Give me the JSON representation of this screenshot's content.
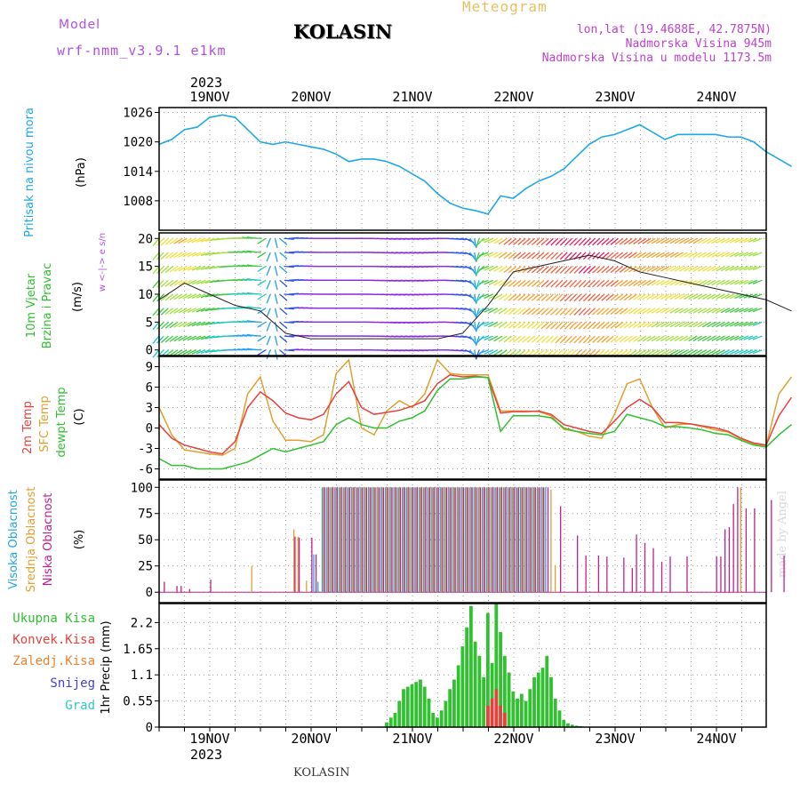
{
  "header": {
    "model_label": "Model",
    "model_name": "wrf-nmm_v3.9.1 e1km",
    "station": "KOLASIN",
    "product": "Meteogram",
    "coords": "lon,lat (19.4688E, 42.7875N)",
    "elevation": "Nadmorska Visina 945m",
    "model_elevation": "Nadmorska Visina u modelu 1173.5m",
    "footer_station": "KOLASIN",
    "credit": "made by Angel"
  },
  "colors": {
    "model": "#b050e0",
    "product": "#e6c060",
    "coords": "#c040d0",
    "pressure": "#1ea8e6",
    "temp2m": "#e8403c",
    "tempsfc": "#e0a030",
    "dewpt": "#30c030",
    "cloud_high": "#1ea8e6",
    "cloud_mid": "#e0a030",
    "cloud_low": "#c0208c",
    "precip_total": "#30c030",
    "precip_conv": "#e8403c",
    "precip_frz": "#f08030",
    "snow": "#4040e0",
    "grad": "#30c8c8",
    "wind_label": "#30c030"
  },
  "time_axis": {
    "year": "2023",
    "days": [
      "19NOV",
      "20NOV",
      "21NOV",
      "22NOV",
      "23NOV",
      "24NOV"
    ]
  },
  "chart_data": [
    {
      "type": "line",
      "name": "pressure",
      "ylabel": "Pritisak na nivou mora",
      "unit": "(hPa)",
      "ylim": [
        1002,
        1027
      ],
      "yticks": [
        "1008",
        "1014",
        "1020",
        "1026"
      ],
      "x_hours": [
        0,
        3,
        6,
        9,
        12,
        15,
        18,
        21,
        24,
        27,
        30,
        33,
        36,
        39,
        42,
        45,
        48,
        51,
        54,
        57,
        60,
        63,
        66,
        69,
        72,
        75,
        78,
        81,
        84,
        87,
        90,
        93,
        96,
        99,
        102,
        105,
        108,
        111,
        114,
        117,
        120,
        123,
        126,
        129,
        132,
        135,
        138,
        141,
        144,
        147,
        150
      ],
      "values": [
        1019.5,
        1020.5,
        1022.5,
        1023,
        1025,
        1025.5,
        1025,
        1022.5,
        1020,
        1019.5,
        1020,
        1019.5,
        1019,
        1018.5,
        1017.5,
        1016,
        1016.5,
        1016.5,
        1016,
        1015,
        1013.5,
        1012,
        1009.5,
        1007.5,
        1006.5,
        1006,
        1005.3,
        1009,
        1008.5,
        1010.5,
        1012,
        1013,
        1014.5,
        1017,
        1019.5,
        1021,
        1021.5,
        1022.5,
        1023.5,
        1022,
        1020.5,
        1021.5,
        1021.5,
        1021.5,
        1021.5,
        1021,
        1021,
        1020,
        1018,
        1016.5,
        1015
      ]
    },
    {
      "type": "wind",
      "name": "wind10m",
      "ylabel": "10m Vjetar Brzina i Pravac",
      "unit": "(m/s)",
      "compass": "w <-|-> e  s/n",
      "ylim": [
        -1,
        21
      ],
      "yticks": [
        "0",
        "5",
        "10",
        "15",
        "20"
      ],
      "x_hours": [
        0,
        6,
        12,
        18,
        24,
        30,
        36,
        42,
        48,
        54,
        60,
        66,
        72,
        78,
        84,
        90,
        96,
        102,
        108,
        114,
        120,
        126,
        132,
        138,
        144,
        150
      ],
      "speed": [
        9,
        12,
        10,
        8,
        7,
        3,
        2,
        2,
        2,
        2,
        2,
        2,
        3,
        8,
        14,
        15,
        16,
        17,
        16,
        14,
        13,
        12,
        11,
        10,
        9,
        7
      ],
      "direction_deg": [
        220,
        240,
        250,
        270,
        280,
        85,
        90,
        90,
        90,
        95,
        95,
        90,
        100,
        250,
        230,
        230,
        225,
        225,
        230,
        235,
        240,
        240,
        240,
        245,
        250,
        250
      ]
    },
    {
      "type": "line",
      "name": "temperature",
      "ylabel": "2m Temp SFC Temp dewpt Temp",
      "unit": "(C)",
      "ylim": [
        -7.5,
        10.5
      ],
      "yticks": [
        "-6",
        "-3",
        "0",
        "3",
        "6",
        "9"
      ],
      "x_hours": [
        0,
        3,
        6,
        9,
        12,
        15,
        18,
        21,
        24,
        27,
        30,
        33,
        36,
        39,
        42,
        45,
        48,
        51,
        54,
        57,
        60,
        63,
        66,
        69,
        72,
        75,
        78,
        81,
        84,
        87,
        90,
        93,
        96,
        99,
        102,
        105,
        108,
        111,
        114,
        117,
        120,
        123,
        126,
        129,
        132,
        135,
        138,
        141,
        144,
        147,
        150
      ],
      "series": [
        {
          "name": "2m Temp",
          "values": [
            0.5,
            -1.5,
            -2.5,
            -3,
            -3.5,
            -3.8,
            -2,
            3,
            5.3,
            4,
            2.2,
            1.5,
            1.2,
            2,
            5,
            6.8,
            3,
            2,
            2.3,
            2.6,
            3.2,
            4,
            6.5,
            7.8,
            7.5,
            7.6,
            7.4,
            2.2,
            2.4,
            2.4,
            2.5,
            2,
            0.5,
            0,
            -0.5,
            -0.8,
            1,
            3,
            4.2,
            3,
            0.8,
            0.8,
            0.6,
            0.3,
            0,
            -0.5,
            -1.5,
            -2.2,
            -2.5,
            1.8,
            4.5
          ]
        },
        {
          "name": "SFC Temp",
          "values": [
            3,
            -1,
            -3.2,
            -3.5,
            -3.8,
            -4,
            -3,
            5,
            7.5,
            1,
            -1.8,
            -1.8,
            -2,
            -1,
            8,
            10,
            0,
            -1,
            2.5,
            4,
            3,
            5,
            10,
            8,
            7.8,
            7.8,
            7.8,
            2.5,
            2.5,
            2.5,
            2.4,
            1.8,
            -0.2,
            -0.5,
            -1.2,
            -1.5,
            2,
            6.5,
            7.2,
            3,
            0,
            0.5,
            0.6,
            0.2,
            -0.3,
            -0.6,
            -1.6,
            -2.3,
            -2.6,
            5,
            7.5
          ]
        },
        {
          "name": "dewpt Temp",
          "values": [
            -4.5,
            -5.5,
            -5.5,
            -6,
            -6,
            -6,
            -5.5,
            -5,
            -4,
            -3,
            -3.5,
            -3,
            -2.5,
            -2,
            0.5,
            1.5,
            0.5,
            0,
            0,
            1,
            1.5,
            2.5,
            5.5,
            7.2,
            7.2,
            7.5,
            7.4,
            -0.5,
            1.8,
            1.8,
            1.8,
            1.5,
            0,
            -0.5,
            -0.8,
            -1,
            -0.5,
            2,
            1.5,
            1,
            0.2,
            0.2,
            0,
            -0.3,
            -0.8,
            -1,
            -1.8,
            -2.5,
            -2.8,
            -1,
            0.5
          ]
        }
      ]
    },
    {
      "type": "bar",
      "name": "clouds",
      "ylabel": "Visoka Oblacnost Srednja Oblacnost Niska Oblacnost",
      "unit": "(%)",
      "ylim": [
        0,
        100
      ],
      "yticks": [
        "0",
        "25",
        "50",
        "75",
        "100"
      ],
      "series": [
        {
          "name": "Visoka Oblacnost",
          "x_hours": [
            37,
            38,
            39,
            40,
            41,
            42,
            43,
            44,
            45,
            46,
            47,
            48,
            49,
            50,
            51,
            52,
            53,
            54,
            55,
            56,
            57,
            58,
            59,
            60,
            61,
            62,
            63,
            64,
            65,
            66,
            67,
            68,
            69,
            70,
            71,
            72,
            73,
            74,
            75,
            76,
            77,
            78,
            79,
            80,
            81,
            82,
            83,
            84,
            85,
            86,
            87,
            88,
            89,
            90,
            91,
            92
          ],
          "values": [
            36,
            10,
            100,
            100,
            100,
            100,
            100,
            100,
            100,
            100,
            100,
            100,
            100,
            100,
            100,
            100,
            100,
            100,
            100,
            100,
            100,
            100,
            100,
            100,
            100,
            100,
            100,
            100,
            100,
            100,
            100,
            100,
            100,
            100,
            100,
            100,
            100,
            100,
            100,
            100,
            100,
            100,
            100,
            100,
            100,
            100,
            100,
            100,
            100,
            100,
            100,
            100,
            100,
            100,
            100,
            100
          ]
        },
        {
          "name": "Srednja Oblacnost",
          "x_hours": [
            22,
            32,
            33,
            35,
            39,
            40,
            41,
            42,
            43,
            44,
            45,
            46,
            47,
            48,
            49,
            50,
            51,
            52,
            53,
            54,
            55,
            56,
            57,
            58,
            59,
            60,
            61,
            62,
            63,
            64,
            65,
            66,
            67,
            68,
            69,
            70,
            71,
            72,
            73,
            74,
            75,
            76,
            77,
            78,
            79,
            80,
            81,
            82,
            83,
            84,
            85,
            86,
            87,
            88,
            89,
            90,
            91,
            93,
            94,
            138
          ],
          "values": [
            25,
            60,
            53,
            11,
            100,
            100,
            100,
            100,
            100,
            100,
            100,
            100,
            100,
            100,
            100,
            100,
            100,
            100,
            100,
            100,
            100,
            100,
            100,
            100,
            100,
            100,
            100,
            100,
            100,
            100,
            100,
            100,
            100,
            100,
            100,
            100,
            100,
            100,
            100,
            100,
            100,
            100,
            100,
            100,
            100,
            100,
            100,
            100,
            100,
            100,
            100,
            100,
            100,
            100,
            100,
            100,
            100,
            98,
            26,
            100
          ]
        },
        {
          "name": "Niska Oblacnost",
          "x_hours": [
            1,
            4,
            5,
            7,
            12,
            32,
            33,
            35,
            36,
            37,
            39,
            40,
            41,
            42,
            43,
            44,
            45,
            46,
            47,
            48,
            49,
            50,
            51,
            52,
            53,
            54,
            55,
            56,
            57,
            58,
            59,
            60,
            61,
            62,
            63,
            64,
            65,
            66,
            67,
            68,
            69,
            70,
            71,
            72,
            73,
            74,
            75,
            76,
            77,
            78,
            79,
            80,
            81,
            82,
            83,
            84,
            85,
            86,
            87,
            88,
            89,
            90,
            91,
            92,
            95,
            99,
            101,
            104,
            106,
            110,
            112,
            113,
            115,
            117,
            119,
            121,
            125,
            132,
            133,
            134,
            135,
            136,
            137,
            139,
            141,
            145,
            148
          ],
          "values": [
            10,
            6,
            6,
            3,
            12,
            53,
            52,
            0,
            52,
            36,
            100,
            100,
            100,
            100,
            100,
            100,
            100,
            100,
            100,
            100,
            100,
            100,
            100,
            100,
            100,
            100,
            100,
            100,
            100,
            100,
            100,
            100,
            100,
            100,
            100,
            100,
            100,
            100,
            100,
            100,
            100,
            100,
            100,
            100,
            100,
            100,
            100,
            100,
            100,
            100,
            100,
            100,
            100,
            100,
            100,
            100,
            100,
            100,
            100,
            100,
            100,
            100,
            100,
            100,
            82,
            54,
            35,
            35,
            34,
            33,
            23,
            55,
            47,
            42,
            29,
            34,
            34,
            34,
            34,
            60,
            62,
            84,
            100,
            80,
            80,
            88,
            35
          ]
        }
      ]
    },
    {
      "type": "bar",
      "name": "precipitation",
      "ylabel": "1hr Precip",
      "unit": "(mm)",
      "ylim": [
        0,
        2.6
      ],
      "yticks": [
        "0",
        "0.55",
        "1.1",
        "1.65",
        "2.2"
      ],
      "series": [
        {
          "name": "Ukupna Kisa",
          "x_hours": [
            54,
            55,
            56,
            57,
            58,
            59,
            60,
            61,
            62,
            63,
            64,
            65,
            66,
            67,
            68,
            69,
            70,
            71,
            72,
            73,
            74,
            75,
            76,
            77,
            78,
            79,
            80,
            81,
            82,
            83,
            84,
            85,
            86,
            87,
            88,
            89,
            90,
            91,
            92,
            93,
            94,
            95,
            96,
            97,
            98,
            99,
            100
          ],
          "values": [
            0.1,
            0.2,
            0.3,
            0.55,
            0.8,
            0.85,
            0.9,
            0.95,
            1.0,
            0.85,
            0.6,
            0.3,
            0.2,
            0.35,
            0.55,
            0.8,
            1.0,
            1.3,
            1.7,
            2.1,
            2.55,
            1.8,
            1.5,
            1.05,
            2.4,
            1.35,
            2.6,
            2.0,
            1.5,
            1.15,
            0.75,
            0.6,
            0.7,
            0.55,
            0.8,
            1.05,
            1.15,
            1.25,
            1.5,
            1.05,
            0.6,
            0.35,
            0.15,
            0.08,
            0.05,
            0.03,
            0.02
          ]
        },
        {
          "name": "Konvek.Kisa",
          "x_hours": [
            78,
            79,
            80,
            81,
            82
          ],
          "values": [
            0.45,
            0.6,
            0.8,
            0.45,
            0.3
          ]
        },
        {
          "name": "Zaledj.Kisa",
          "x_hours": [],
          "values": []
        },
        {
          "name": "Snijeg",
          "x_hours": [],
          "values": []
        },
        {
          "name": "Grad",
          "x_hours": [],
          "values": []
        }
      ]
    }
  ]
}
